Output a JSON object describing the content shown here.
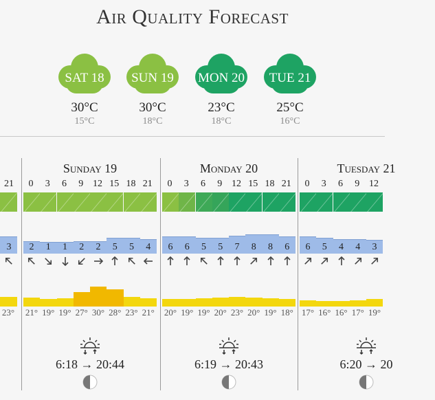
{
  "title": "Air Quality Forecast",
  "colors": {
    "light_green": "#8bc043",
    "dark_green": "#1ea363",
    "wind": "#9ebbe8",
    "sun": "#f3d70e",
    "sun_strong": "#f1b800"
  },
  "summary": [
    {
      "label": "SAT 18",
      "max": "30°C",
      "min": "15°C",
      "color": "#8bc043"
    },
    {
      "label": "SUN 19",
      "max": "30°C",
      "min": "18°C",
      "color": "#8bc043"
    },
    {
      "label": "MON 20",
      "max": "23°C",
      "min": "18°C",
      "color": "#1ea363"
    },
    {
      "label": "TUE 21",
      "max": "25°C",
      "min": "16°C",
      "color": "#1ea363"
    }
  ],
  "partial_left": {
    "hour": "21",
    "wind": "3",
    "temp": "23°"
  },
  "days": [
    {
      "name": "Sunday 19",
      "hours": [
        "0",
        "3",
        "6",
        "9",
        "12",
        "15",
        "18",
        "21"
      ],
      "aq": [
        "#8bc043",
        "#8bc043",
        "#8bc043",
        "#8bc043",
        "#8bc043",
        "#8bc043",
        "#8bc043",
        "#8bc043"
      ],
      "wind": [
        "2",
        "1",
        "1",
        "2",
        "2",
        "5",
        "5",
        "4"
      ],
      "wind_dir": [
        "↖",
        "↘",
        "↓",
        "↙",
        "→",
        "↑",
        "↖",
        "←"
      ],
      "temps": [
        "21°",
        "19°",
        "19°",
        "27°",
        "30°",
        "28°",
        "23°",
        "21°"
      ],
      "sun_levels": [
        0.22,
        0.18,
        0.2,
        0.5,
        0.75,
        0.62,
        0.28,
        0.2
      ],
      "sunrise": "6:18 → 20:44"
    },
    {
      "name": "Monday 20",
      "hours": [
        "0",
        "3",
        "6",
        "9",
        "12",
        "15",
        "18",
        "21"
      ],
      "aq": [
        "#8bc043",
        "#6fb548",
        "#3ea957",
        "#35a55a",
        "#1ea363",
        "#1ea363",
        "#1ea363",
        "#1ea363"
      ],
      "wind": [
        "6",
        "6",
        "5",
        "5",
        "7",
        "8",
        "8",
        "6"
      ],
      "wind_dir": [
        "↑",
        "↑",
        "↖",
        "↑",
        "↑",
        "↗",
        "↑",
        "↑"
      ],
      "temps": [
        "20°",
        "19°",
        "19°",
        "20°",
        "23°",
        "20°",
        "19°",
        "18°"
      ],
      "sun_levels": [
        0.18,
        0.18,
        0.2,
        0.22,
        0.28,
        0.24,
        0.2,
        0.18
      ],
      "sunrise": "6:19 → 20:43"
    },
    {
      "name": "Tuesday 21",
      "hours": [
        "0",
        "3",
        "6",
        "9",
        "12"
      ],
      "aq": [
        "#1ea363",
        "#1ea363",
        "#1ea363",
        "#1ea363",
        "#1ea363"
      ],
      "wind": [
        "6",
        "5",
        "4",
        "4",
        "3"
      ],
      "wind_dir": [
        "↗",
        "↗",
        "↑",
        "↗",
        "↗"
      ],
      "temps": [
        "17°",
        "16°",
        "16°",
        "17°",
        "19°"
      ],
      "sun_levels": [
        0.1,
        0.08,
        0.07,
        0.09,
        0.15
      ],
      "sunrise": "6:20 → 20"
    }
  ]
}
